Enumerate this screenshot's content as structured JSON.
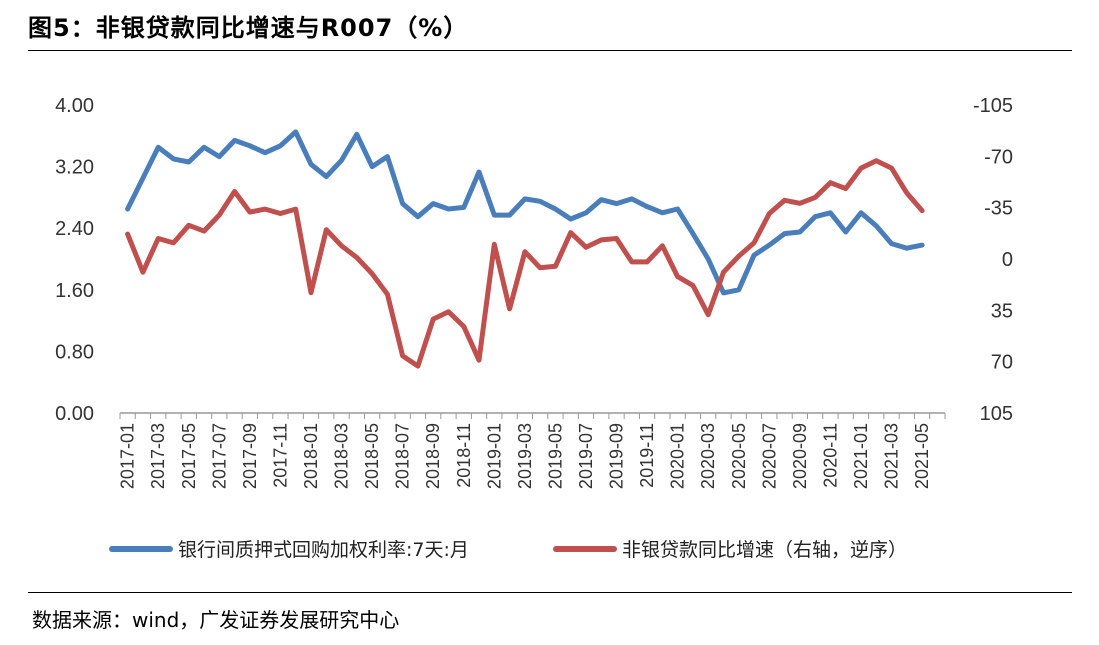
{
  "title": "图5：非银贷款同比增速与R007（%）",
  "source": "数据来源：wind，广发证券发展研究中心",
  "colors": {
    "blue": "#4a7ebb",
    "red": "#c0504d"
  },
  "chart_data": {
    "type": "line",
    "title": "非银贷款同比增速与R007（%）",
    "x": [
      "2017-01",
      "2017-02",
      "2017-03",
      "2017-04",
      "2017-05",
      "2017-06",
      "2017-07",
      "2017-08",
      "2017-09",
      "2017-10",
      "2017-11",
      "2017-12",
      "2018-01",
      "2018-02",
      "2018-03",
      "2018-04",
      "2018-05",
      "2018-06",
      "2018-07",
      "2018-08",
      "2018-09",
      "2018-10",
      "2018-11",
      "2018-12",
      "2019-01",
      "2019-02",
      "2019-03",
      "2019-04",
      "2019-05",
      "2019-06",
      "2019-07",
      "2019-08",
      "2019-09",
      "2019-10",
      "2019-11",
      "2019-12",
      "2020-01",
      "2020-02",
      "2020-03",
      "2020-04",
      "2020-05",
      "2020-06",
      "2020-07",
      "2020-08",
      "2020-09",
      "2020-10",
      "2020-11",
      "2020-12",
      "2021-01",
      "2021-02",
      "2021-03",
      "2021-04",
      "2021-05",
      "2021-06"
    ],
    "x_tick_labels": [
      "2017-01",
      "2017-03",
      "2017-05",
      "2017-07",
      "2017-09",
      "2017-11",
      "2018-01",
      "2018-03",
      "2018-05",
      "2018-07",
      "2018-09",
      "2018-11",
      "2019-01",
      "2019-03",
      "2019-05",
      "2019-07",
      "2019-09",
      "2019-11",
      "2020-01",
      "2020-03",
      "2020-05",
      "2020-07",
      "2020-09",
      "2020-11",
      "2021-01",
      "2021-03",
      "2021-05"
    ],
    "left_axis": {
      "ylim": [
        0,
        4
      ],
      "ticks": [
        "4.00",
        "3.20",
        "2.40",
        "1.60",
        "0.80",
        "0.00"
      ],
      "tick_values": [
        4.0,
        3.2,
        2.4,
        1.6,
        0.8,
        0.0
      ]
    },
    "right_axis": {
      "ylim": [
        -105,
        105
      ],
      "inverted": true,
      "ticks": [
        "-105",
        "-70",
        "-35",
        "0",
        "35",
        "70",
        "105"
      ],
      "tick_values": [
        -105,
        -70,
        -35,
        0,
        35,
        70,
        105
      ]
    },
    "series": [
      {
        "name": "银行间质押式回购加权利率:7天:月",
        "axis": "left",
        "color": "#4a7ebb",
        "values": [
          2.65,
          3.05,
          3.45,
          3.3,
          3.26,
          3.45,
          3.33,
          3.54,
          3.47,
          3.38,
          3.47,
          3.65,
          3.23,
          3.07,
          3.28,
          3.62,
          3.2,
          3.33,
          2.72,
          2.55,
          2.72,
          2.65,
          2.67,
          3.13,
          2.57,
          2.57,
          2.78,
          2.75,
          2.65,
          2.52,
          2.6,
          2.77,
          2.72,
          2.78,
          2.68,
          2.6,
          2.65,
          2.33,
          2.0,
          1.56,
          1.6,
          2.05,
          2.18,
          2.33,
          2.35,
          2.55,
          2.6,
          2.35,
          2.6,
          2.43,
          2.2,
          2.14,
          2.18,
          null
        ]
      },
      {
        "name": "非银贷款同比增速（右轴，逆序）",
        "axis": "right",
        "color": "#c0504d",
        "values": [
          -17,
          9,
          -14,
          -11,
          -23,
          -19,
          -30,
          -46,
          -32,
          -34,
          -31,
          -34,
          23,
          -20,
          -9,
          -1,
          10,
          24,
          66,
          73,
          41,
          36,
          46,
          69,
          -10,
          34,
          -5,
          6,
          5,
          -18,
          -8,
          -13,
          -14,
          2,
          2,
          -9,
          12,
          18,
          38,
          9,
          -2,
          -11,
          -31,
          -40,
          -38,
          -42,
          -52,
          -48,
          -62,
          -67,
          -62,
          -45,
          -33,
          null
        ]
      }
    ],
    "legend": [
      "银行间质押式回购加权利率:7天:月",
      "非银贷款同比增速（右轴，逆序）"
    ],
    "legend_position": "bottom"
  }
}
